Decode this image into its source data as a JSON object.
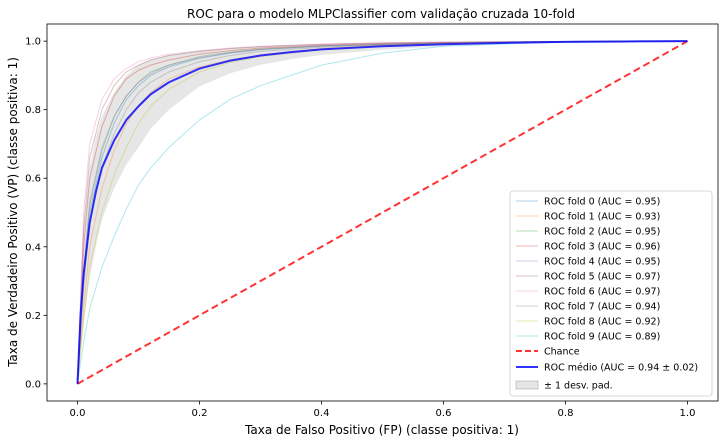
{
  "chart_data": {
    "type": "line",
    "title": "ROC para o modelo MLPClassifier com validação cruzada 10-fold",
    "xlabel": "Taxa de Falso Positivo (FP) (classe positiva: 1)",
    "ylabel": "Taxa de Verdadeiro Positivo (VP) (classe positiva: 1)",
    "xlim": [
      -0.05,
      1.05
    ],
    "ylim": [
      -0.05,
      1.05
    ],
    "x_ticks": [
      "0.0",
      "0.2",
      "0.4",
      "0.6",
      "0.8",
      "1.0"
    ],
    "y_ticks": [
      "0.0",
      "0.2",
      "0.4",
      "0.6",
      "0.8",
      "1.0"
    ],
    "grid": false,
    "legend_position": "lower-right",
    "series": [
      {
        "name": "ROC fold 0 (AUC = 0.95)",
        "color": "#1f77b4",
        "x": [
          0,
          0.01,
          0.02,
          0.04,
          0.06,
          0.08,
          0.1,
          0.12,
          0.15,
          0.2,
          0.25,
          0.3,
          0.4,
          0.5,
          0.6,
          0.8,
          1.0
        ],
        "y": [
          0,
          0.3,
          0.5,
          0.66,
          0.76,
          0.83,
          0.87,
          0.9,
          0.925,
          0.95,
          0.965,
          0.975,
          0.985,
          0.99,
          0.995,
          0.999,
          1.0
        ]
      },
      {
        "name": "ROC fold 1 (AUC = 0.93)",
        "color": "#ff7f0e",
        "x": [
          0,
          0.01,
          0.02,
          0.04,
          0.06,
          0.08,
          0.1,
          0.12,
          0.15,
          0.2,
          0.25,
          0.3,
          0.4,
          0.5,
          0.6,
          0.8,
          1.0
        ],
        "y": [
          0,
          0.22,
          0.4,
          0.57,
          0.68,
          0.76,
          0.81,
          0.85,
          0.89,
          0.925,
          0.945,
          0.96,
          0.978,
          0.988,
          0.994,
          0.999,
          1.0
        ]
      },
      {
        "name": "ROC fold 2 (AUC = 0.95)",
        "color": "#2ca02c",
        "x": [
          0,
          0.01,
          0.02,
          0.04,
          0.06,
          0.08,
          0.1,
          0.12,
          0.15,
          0.2,
          0.25,
          0.3,
          0.4,
          0.5,
          0.6,
          0.8,
          1.0
        ],
        "y": [
          0,
          0.32,
          0.52,
          0.68,
          0.78,
          0.84,
          0.88,
          0.91,
          0.93,
          0.955,
          0.968,
          0.977,
          0.986,
          0.991,
          0.995,
          0.999,
          1.0
        ]
      },
      {
        "name": "ROC fold 3 (AUC = 0.96)",
        "color": "#d62728",
        "x": [
          0,
          0.01,
          0.02,
          0.04,
          0.06,
          0.08,
          0.1,
          0.12,
          0.15,
          0.2,
          0.25,
          0.3,
          0.4,
          0.5,
          0.6,
          0.8,
          1.0
        ],
        "y": [
          0,
          0.4,
          0.6,
          0.75,
          0.84,
          0.89,
          0.915,
          0.93,
          0.945,
          0.962,
          0.972,
          0.98,
          0.988,
          0.993,
          0.996,
          0.999,
          1.0
        ]
      },
      {
        "name": "ROC fold 4 (AUC = 0.95)",
        "color": "#9467bd",
        "x": [
          0,
          0.01,
          0.02,
          0.04,
          0.06,
          0.08,
          0.1,
          0.12,
          0.15,
          0.2,
          0.25,
          0.3,
          0.4,
          0.5,
          0.6,
          0.8,
          1.0
        ],
        "y": [
          0,
          0.33,
          0.53,
          0.69,
          0.78,
          0.84,
          0.88,
          0.905,
          0.93,
          0.952,
          0.966,
          0.976,
          0.986,
          0.991,
          0.995,
          0.999,
          1.0
        ]
      },
      {
        "name": "ROC fold 5 (AUC = 0.97)",
        "color": "#8c564b",
        "x": [
          0,
          0.01,
          0.02,
          0.04,
          0.06,
          0.08,
          0.1,
          0.12,
          0.15,
          0.2,
          0.25,
          0.3,
          0.4,
          0.5,
          0.6,
          0.8,
          1.0
        ],
        "y": [
          0,
          0.45,
          0.66,
          0.8,
          0.87,
          0.91,
          0.93,
          0.945,
          0.958,
          0.97,
          0.978,
          0.984,
          0.991,
          0.995,
          0.997,
          0.999,
          1.0
        ]
      },
      {
        "name": "ROC fold 6 (AUC = 0.97)",
        "color": "#e377c2",
        "x": [
          0,
          0.01,
          0.02,
          0.04,
          0.06,
          0.08,
          0.1,
          0.12,
          0.15,
          0.2,
          0.25,
          0.3,
          0.4,
          0.5,
          0.6,
          0.8,
          1.0
        ],
        "y": [
          0,
          0.5,
          0.7,
          0.83,
          0.89,
          0.92,
          0.94,
          0.95,
          0.962,
          0.972,
          0.98,
          0.985,
          0.991,
          0.995,
          0.997,
          0.999,
          1.0
        ]
      },
      {
        "name": "ROC fold 7 (AUC = 0.94)",
        "color": "#7f7f7f",
        "x": [
          0,
          0.01,
          0.02,
          0.04,
          0.06,
          0.08,
          0.1,
          0.12,
          0.15,
          0.2,
          0.25,
          0.3,
          0.4,
          0.5,
          0.6,
          0.8,
          1.0
        ],
        "y": [
          0,
          0.28,
          0.47,
          0.63,
          0.73,
          0.8,
          0.85,
          0.88,
          0.91,
          0.94,
          0.958,
          0.97,
          0.982,
          0.99,
          0.994,
          0.999,
          1.0
        ]
      },
      {
        "name": "ROC fold 8 (AUC = 0.92)",
        "color": "#bcbd22",
        "x": [
          0,
          0.01,
          0.02,
          0.04,
          0.06,
          0.08,
          0.1,
          0.12,
          0.15,
          0.2,
          0.25,
          0.3,
          0.4,
          0.5,
          0.6,
          0.8,
          1.0
        ],
        "y": [
          0,
          0.18,
          0.34,
          0.5,
          0.61,
          0.69,
          0.76,
          0.81,
          0.86,
          0.91,
          0.938,
          0.955,
          0.975,
          0.986,
          0.993,
          0.999,
          1.0
        ]
      },
      {
        "name": "ROC fold 9 (AUC = 0.89)",
        "color": "#17becf",
        "x": [
          0,
          0.01,
          0.02,
          0.04,
          0.06,
          0.08,
          0.1,
          0.12,
          0.15,
          0.2,
          0.25,
          0.3,
          0.4,
          0.5,
          0.6,
          0.8,
          1.0
        ],
        "y": [
          0,
          0.12,
          0.22,
          0.34,
          0.43,
          0.51,
          0.58,
          0.63,
          0.69,
          0.77,
          0.83,
          0.87,
          0.93,
          0.965,
          0.985,
          0.998,
          1.0
        ]
      },
      {
        "name": "Chance",
        "color": "#ff0000",
        "style": "dashed",
        "x": [
          0,
          1
        ],
        "y": [
          0,
          1
        ]
      },
      {
        "name": "ROC médio (AUC = 0.94 ± 0.02)",
        "color": "#0000ff",
        "x": [
          0,
          0.005,
          0.01,
          0.02,
          0.03,
          0.04,
          0.06,
          0.08,
          0.1,
          0.12,
          0.15,
          0.2,
          0.25,
          0.3,
          0.35,
          0.4,
          0.5,
          0.6,
          0.7,
          0.8,
          0.9,
          1.0
        ],
        "y": [
          0,
          0.2,
          0.32,
          0.47,
          0.56,
          0.63,
          0.71,
          0.77,
          0.81,
          0.845,
          0.88,
          0.92,
          0.943,
          0.958,
          0.968,
          0.976,
          0.985,
          0.991,
          0.995,
          0.998,
          0.999,
          1.0
        ]
      }
    ],
    "std_band": {
      "name": "± 1 desv. pad.",
      "color": "#c0c0c0",
      "x": [
        0,
        0.005,
        0.01,
        0.02,
        0.03,
        0.04,
        0.06,
        0.08,
        0.1,
        0.12,
        0.15,
        0.2,
        0.25,
        0.3,
        0.35,
        0.4,
        0.5,
        0.6,
        0.7,
        0.8,
        0.9,
        1.0
      ],
      "upper": [
        0,
        0.3,
        0.46,
        0.63,
        0.72,
        0.78,
        0.85,
        0.9,
        0.93,
        0.945,
        0.96,
        0.972,
        0.98,
        0.985,
        0.989,
        0.992,
        0.995,
        0.997,
        0.999,
        1.0,
        1.0,
        1.0
      ],
      "lower": [
        0,
        0.1,
        0.18,
        0.31,
        0.4,
        0.48,
        0.57,
        0.64,
        0.69,
        0.745,
        0.8,
        0.868,
        0.906,
        0.931,
        0.947,
        0.96,
        0.975,
        0.985,
        0.991,
        0.996,
        0.998,
        1.0
      ]
    }
  }
}
